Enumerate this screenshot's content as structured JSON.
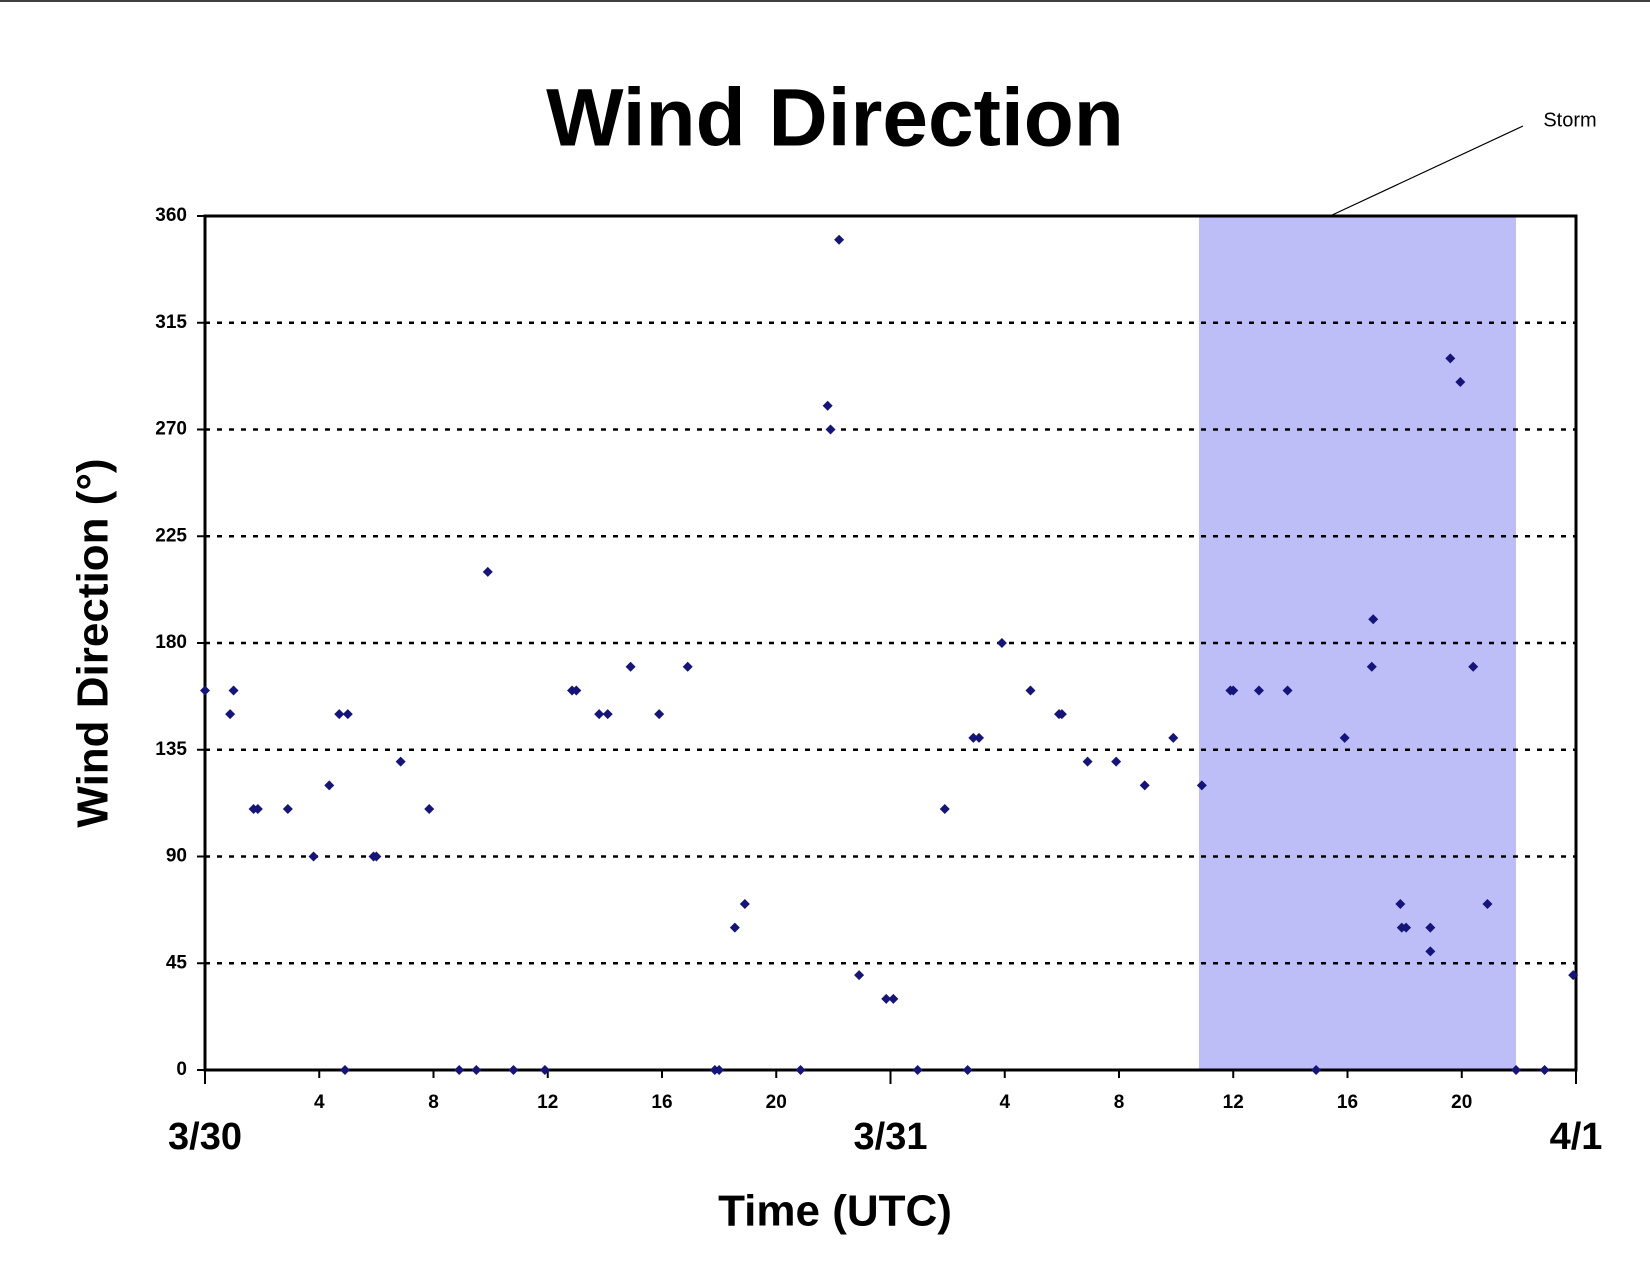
{
  "chart_data": {
    "type": "scatter",
    "title": "Wind Direction",
    "x_label": "Time (UTC)",
    "y_label": "Wind Direction (°)",
    "annotation": "Storm",
    "shaded_region": [
      34.8,
      45.9
    ],
    "shaded_color": "#bdbdf7",
    "x": [
      0,
      0.88,
      1.0,
      1.7,
      1.85,
      2.9,
      3.8,
      4.35,
      4.7,
      5.0,
      4.9,
      5.9,
      6.0,
      6.85,
      7.85,
      8.9,
      9.5,
      9.9,
      10.8,
      11.9,
      12.85,
      13.0,
      13.8,
      14.1,
      14.9,
      15.9,
      16.9,
      17.85,
      18.0,
      18.55,
      18.9,
      20.85,
      21.8,
      21.9,
      22.2,
      22.9,
      23.85,
      24.1,
      24.95,
      25.9,
      26.7,
      26.9,
      27.1,
      27.9,
      28.9,
      29.9,
      30.0,
      30.9,
      31.9,
      32.9,
      33.9,
      34.9,
      35.9,
      36.0,
      36.9,
      37.9,
      38.9,
      39.9,
      40.9,
      40.85,
      41.85,
      41.9,
      42.05,
      42.9,
      42.9,
      43.6,
      43.95,
      44.4,
      44.9,
      45.9,
      46.9,
      47.9
    ],
    "series": [
      {
        "color": "#14147a",
        "values": [
          160,
          150,
          160,
          110,
          110,
          110,
          90,
          120,
          150,
          150,
          0,
          90,
          90,
          130,
          110,
          0,
          0,
          210,
          0,
          0,
          160,
          160,
          150,
          150,
          170,
          150,
          170,
          0,
          0,
          60,
          70,
          0,
          280,
          270,
          350,
          40,
          30,
          30,
          0,
          110,
          0,
          140,
          140,
          180,
          160,
          150,
          150,
          130,
          130,
          120,
          140,
          120,
          160,
          160,
          160,
          160,
          0,
          140,
          190,
          170,
          70,
          60,
          60,
          60,
          50,
          300,
          290,
          170,
          70,
          0,
          0,
          40
        ]
      }
    ],
    "xlim": [
      0,
      48
    ],
    "xticks": [
      {
        "value": 0,
        "label": "3/30"
      },
      4,
      8,
      12,
      16,
      20,
      {
        "value": 24,
        "label": "3/31"
      },
      {
        "value": 28,
        "label": "4"
      },
      {
        "value": 32,
        "label": "8"
      },
      {
        "value": 36,
        "label": "12"
      },
      {
        "value": 40,
        "label": "16"
      },
      {
        "value": 44,
        "label": "20"
      },
      {
        "value": 48,
        "label": "4/1"
      }
    ],
    "ylim": [
      0,
      360
    ],
    "yticks": [
      0,
      45,
      90,
      135,
      180,
      225,
      270,
      315,
      360
    ],
    "grid": true
  }
}
